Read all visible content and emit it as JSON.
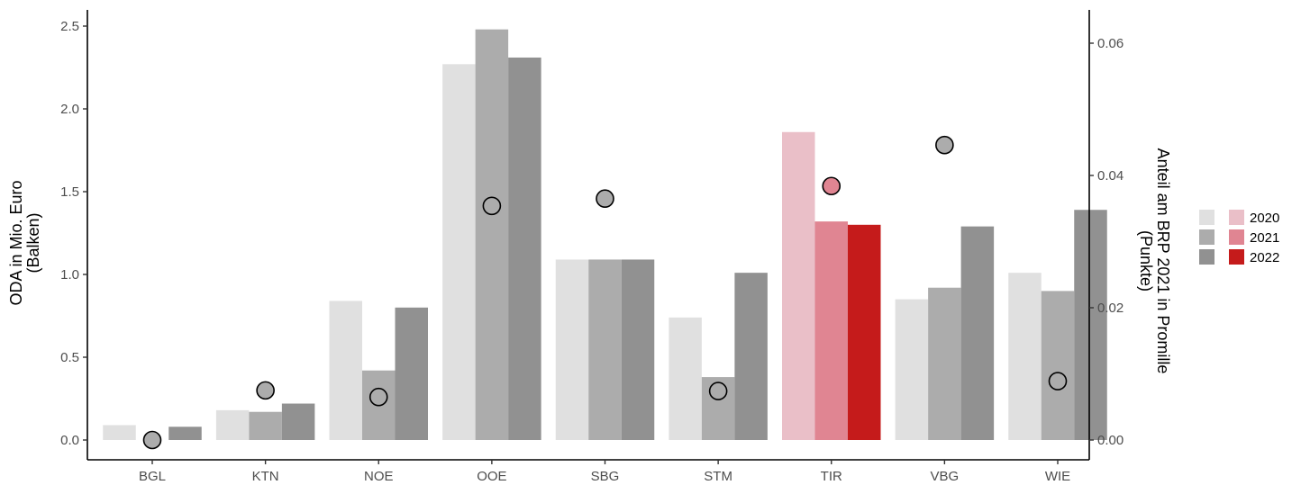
{
  "chart_data": {
    "type": "bar",
    "categories": [
      "BGL",
      "KTN",
      "NOE",
      "OOE",
      "SBG",
      "STM",
      "TIR",
      "VBG",
      "WIE"
    ],
    "series": [
      {
        "name": "2020",
        "values": [
          0.09,
          0.18,
          0.84,
          2.27,
          1.09,
          0.74,
          1.86,
          0.85,
          1.01
        ]
      },
      {
        "name": "2021",
        "values": [
          0.0,
          0.17,
          0.42,
          2.48,
          1.09,
          0.38,
          1.32,
          0.92,
          0.9
        ]
      },
      {
        "name": "2022",
        "values": [
          0.08,
          0.22,
          0.8,
          2.31,
          1.09,
          1.01,
          1.3,
          1.29,
          1.39
        ]
      }
    ],
    "points": {
      "axis": "right",
      "values": [
        0.0,
        0.0075,
        0.0065,
        0.0354,
        0.0365,
        0.0074,
        0.0384,
        0.0446,
        0.0089
      ]
    },
    "highlight_category": "TIR",
    "colors": {
      "gray": [
        "#e0e0e0",
        "#acacac",
        "#919191"
      ],
      "highlight": [
        "#eabfc8",
        "#e08592",
        "#c51b1b"
      ],
      "point_gray": "#acacac",
      "point_highlight": "#e08592"
    },
    "ylabel_left": [
      "ODA in Mio. Euro",
      "(Balken)"
    ],
    "ylabel_right": [
      "Anteil am BRP 2021 in Promille",
      "(Punkte)"
    ],
    "ylim_left": [
      0,
      2.5
    ],
    "yticks_left": [
      0.0,
      0.5,
      1.0,
      1.5,
      2.0,
      2.5
    ],
    "yticks_left_labels": [
      "0.0",
      "0.5",
      "1.0",
      "1.5",
      "2.0",
      "2.5"
    ],
    "ylim_right": [
      0,
      0.06
    ],
    "yticks_right": [
      0.0,
      0.02,
      0.04,
      0.06
    ],
    "yticks_right_labels": [
      "0.00",
      "0.02",
      "0.04",
      "0.06"
    ],
    "legend": {
      "position": "right",
      "labels": [
        "2020",
        "2021",
        "2022"
      ]
    },
    "grid": false
  }
}
